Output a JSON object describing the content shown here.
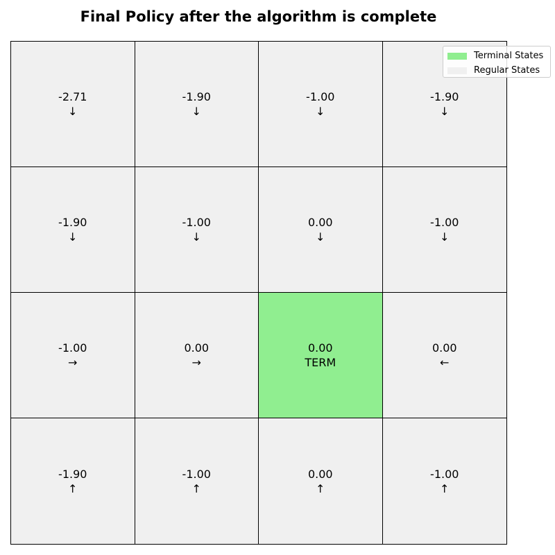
{
  "title": "Final Policy after the algorithm is complete",
  "colors": {
    "terminal": "#90ee90",
    "regular": "#f0f0f0"
  },
  "legend": {
    "terminal_label": "Terminal States",
    "regular_label": "Regular States"
  },
  "grid": {
    "rows": [
      [
        {
          "value": "-2.71",
          "action": "↓",
          "terminal": false
        },
        {
          "value": "-1.90",
          "action": "↓",
          "terminal": false
        },
        {
          "value": "-1.00",
          "action": "↓",
          "terminal": false
        },
        {
          "value": "-1.90",
          "action": "↓",
          "terminal": false
        }
      ],
      [
        {
          "value": "-1.90",
          "action": "↓",
          "terminal": false
        },
        {
          "value": "-1.00",
          "action": "↓",
          "terminal": false
        },
        {
          "value": "0.00",
          "action": "↓",
          "terminal": false
        },
        {
          "value": "-1.00",
          "action": "↓",
          "terminal": false
        }
      ],
      [
        {
          "value": "-1.00",
          "action": "→",
          "terminal": false
        },
        {
          "value": "0.00",
          "action": "→",
          "terminal": false
        },
        {
          "value": "0.00",
          "action": "TERM",
          "terminal": true
        },
        {
          "value": "0.00",
          "action": "←",
          "terminal": false
        }
      ],
      [
        {
          "value": "-1.90",
          "action": "↑",
          "terminal": false
        },
        {
          "value": "-1.00",
          "action": "↑",
          "terminal": false
        },
        {
          "value": "0.00",
          "action": "↑",
          "terminal": false
        },
        {
          "value": "-1.00",
          "action": "↑",
          "terminal": false
        }
      ]
    ]
  }
}
